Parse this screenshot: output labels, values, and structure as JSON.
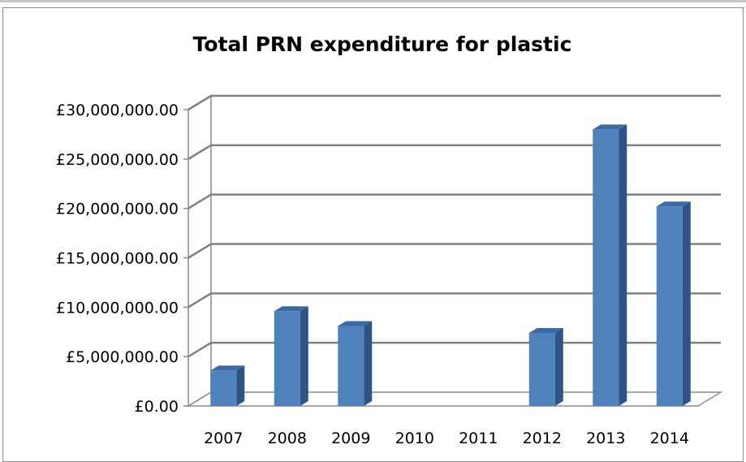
{
  "chart_data": {
    "type": "bar",
    "title": "Total PRN expenditure for plastic",
    "categories": [
      "2007",
      "2008",
      "2009",
      "2010",
      "2011",
      "2012",
      "2013",
      "2014"
    ],
    "values": [
      3600000,
      9600000,
      8100000,
      0,
      0,
      7400000,
      28000000,
      20200000
    ],
    "ylim": [
      0,
      30000000
    ],
    "yticks": [
      {
        "value": 0,
        "label": "£0.00"
      },
      {
        "value": 5000000,
        "label": "£5,000,000.00"
      },
      {
        "value": 10000000,
        "label": "£10,000,000.00"
      },
      {
        "value": 15000000,
        "label": "£15,000,000.00"
      },
      {
        "value": 20000000,
        "label": "£20,000,000.00"
      },
      {
        "value": 25000000,
        "label": "£25,000,000.00"
      },
      {
        "value": 30000000,
        "label": "£30,000,000.00"
      }
    ],
    "grid": true,
    "legend": "none",
    "style": "3d-column",
    "colors": {
      "bar_front": "#4f81bd",
      "bar_side": "#2e5384",
      "bar_top": "#3c6aa5",
      "grid": "#808080",
      "wall": "#8c8c8c"
    }
  }
}
